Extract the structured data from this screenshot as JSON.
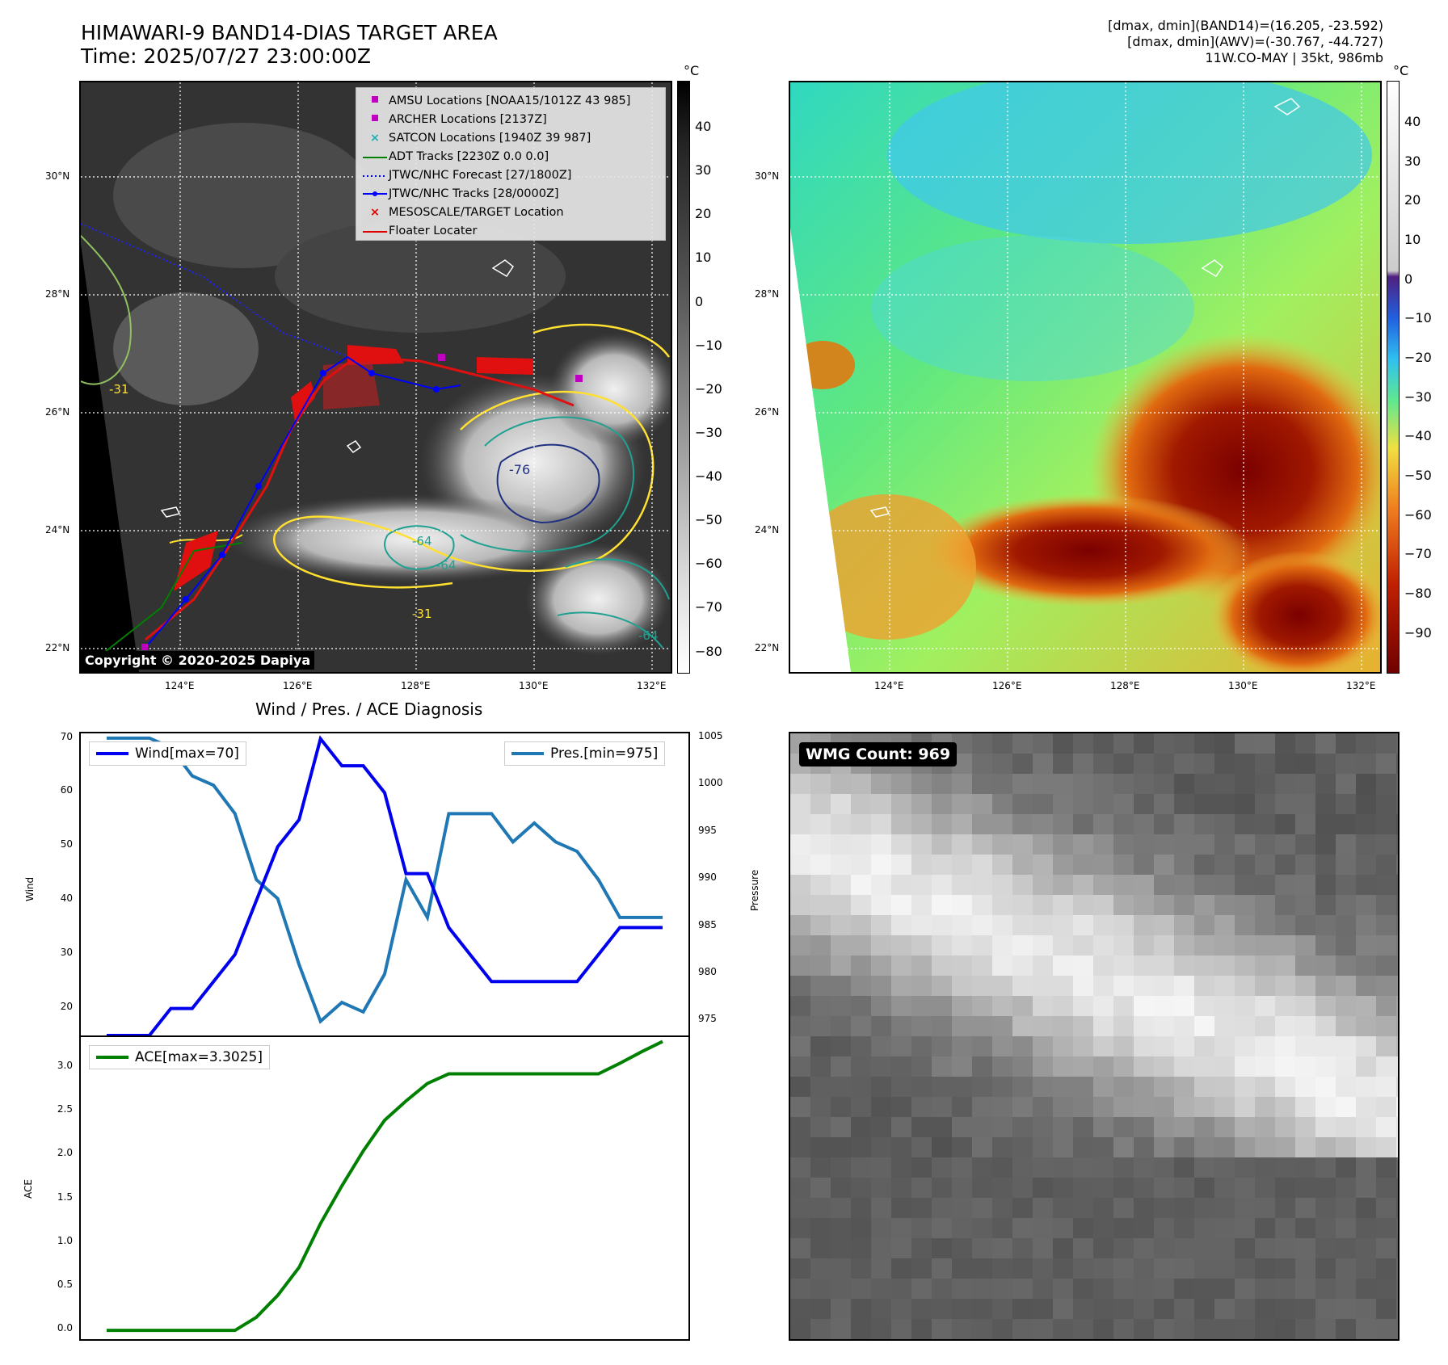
{
  "header": {
    "title": "HIMAWARI-9 BAND14-DIAS TARGET AREA",
    "time": "Time: 2025/07/27 23:00:00Z",
    "dmax_band14": "[dmax, dmin](BAND14)=(16.205, -23.592)",
    "dmax_awv": "[dmax, dmin](AWV)=(-30.767, -44.727)",
    "storm": "11W.CO-MAY | 35kt, 986mb"
  },
  "map": {
    "lon_ticks": [
      "124°E",
      "126°E",
      "128°E",
      "130°E",
      "132°E"
    ],
    "lat_ticks": [
      "30°N",
      "28°N",
      "26°N",
      "24°N",
      "22°N"
    ],
    "unit": "°C",
    "contour_labels": [
      "-76",
      "-64",
      "-64",
      "-31",
      "-31",
      "-64"
    ]
  },
  "colorbar_gray": {
    "ticks": [
      "40",
      "30",
      "20",
      "10",
      "0",
      "−10",
      "−20",
      "−30",
      "−40",
      "−50",
      "−60",
      "−70",
      "−80"
    ]
  },
  "colorbar_awv": {
    "ticks": [
      "40",
      "30",
      "20",
      "10",
      "0",
      "−10",
      "−20",
      "−30",
      "−40",
      "−50",
      "−60",
      "−70",
      "−80",
      "−90"
    ]
  },
  "legend": [
    {
      "label": "AMSU Locations [NOAA15/1012Z 43 985]",
      "color": "#c000c0",
      "symbol": "square"
    },
    {
      "label": "ARCHER Locations [2137Z]",
      "color": "#c000c0",
      "symbol": "square"
    },
    {
      "label": "SATCON Locations [1940Z 39 987]",
      "color": "#20b0b0",
      "symbol": "x"
    },
    {
      "label": "ADT Tracks [2230Z 0.0 0.0]",
      "color": "#008000",
      "symbol": "line"
    },
    {
      "label": "JTWC/NHC Forecast [27/1800Z]",
      "color": "#0000ff",
      "symbol": "dotted"
    },
    {
      "label": "JTWC/NHC Tracks [28/0000Z]",
      "color": "#0000ff",
      "symbol": "line-dot"
    },
    {
      "label": "MESOSCALE/TARGET Location",
      "color": "#e00000",
      "symbol": "x"
    },
    {
      "label": "Floater Locater",
      "color": "#e00000",
      "symbol": "line"
    }
  ],
  "copyright": "Copyright © 2020-2025 Dapiya",
  "wmg_count": "WMG Count: 969",
  "chart_data": [
    {
      "type": "line",
      "title": "Wind / Pres. / ACE Diagnosis",
      "ylabel": "Wind",
      "y2label": "Pressure",
      "ylim": [
        15,
        71
      ],
      "y2lim": [
        973.5,
        1005.5
      ],
      "yticks": [
        20,
        30,
        40,
        50,
        60,
        70
      ],
      "y2ticks": [
        975,
        980,
        985,
        990,
        995,
        1000,
        1005
      ],
      "series": [
        {
          "name": "Wind[max=70]",
          "color": "#0000ee",
          "axis": "y",
          "values": [
            15,
            15,
            15,
            20,
            20,
            25,
            30,
            40,
            50,
            55,
            70,
            65,
            65,
            60,
            45,
            45,
            35,
            30,
            25,
            25,
            25,
            25,
            25,
            30,
            35,
            35,
            35
          ]
        },
        {
          "name": "Pres.[min=975]",
          "color": "#1f77b4",
          "axis": "y2",
          "values": [
            1005,
            1005,
            1005,
            1004,
            1001,
            1000,
            997,
            990,
            988,
            981,
            975,
            977,
            976,
            980,
            990,
            986,
            997,
            997,
            997,
            994,
            996,
            994,
            993,
            990,
            986,
            986,
            986
          ]
        }
      ]
    },
    {
      "type": "line",
      "ylabel": "ACE",
      "ylim": [
        -0.1,
        3.35
      ],
      "yticks": [
        "0.0",
        "0.5",
        "1.0",
        "1.5",
        "2.0",
        "2.5",
        "3.0"
      ],
      "series": [
        {
          "name": "ACE[max=3.3025]",
          "color": "#008000",
          "values": [
            0,
            0,
            0,
            0,
            0,
            0,
            0,
            0.15,
            0.4,
            0.72,
            1.22,
            1.65,
            2.05,
            2.4,
            2.62,
            2.82,
            2.93,
            2.93,
            2.93,
            2.93,
            2.93,
            2.93,
            2.93,
            2.93,
            3.05,
            3.18,
            3.3
          ]
        }
      ]
    }
  ]
}
